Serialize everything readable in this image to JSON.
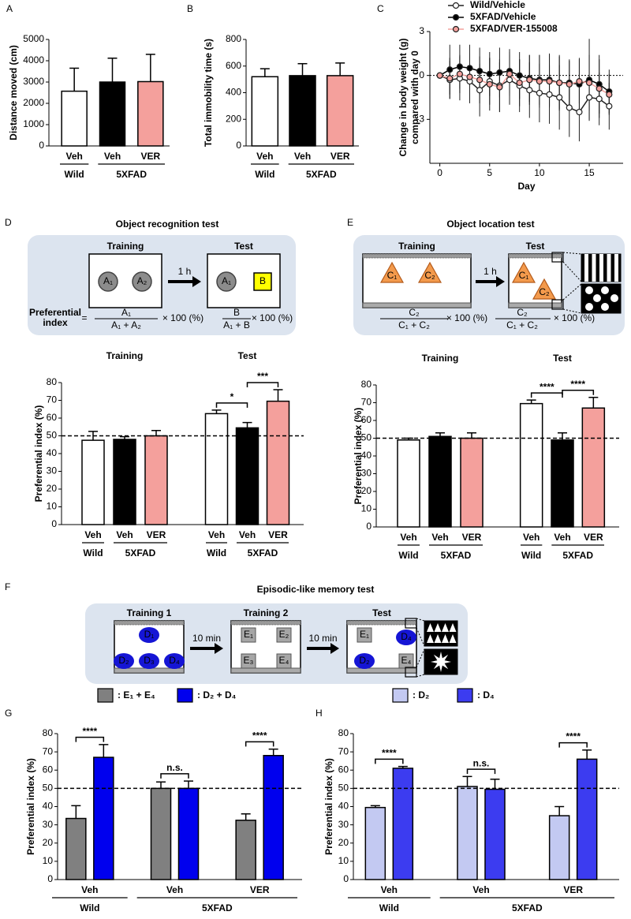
{
  "panel_labels": [
    "A",
    "B",
    "C",
    "D",
    "E",
    "F",
    "G",
    "H"
  ],
  "chart_data": [
    {
      "type": "bar",
      "ylabel": "Distance moved (cm)",
      "ylim": [
        0,
        5000
      ],
      "yticks": [
        0,
        1000,
        2000,
        3000,
        4000,
        5000
      ],
      "colors": [
        "#ffffff",
        "#000000",
        "#f4a09c"
      ],
      "categories": [
        "Veh",
        "Veh",
        "VER"
      ],
      "groups": [
        "Wild",
        "5XFAD"
      ],
      "values": [
        2570,
        3000,
        3020
      ],
      "errors": [
        1080,
        1120,
        1280
      ]
    },
    {
      "type": "bar",
      "ylabel": "Total immobility time (s)",
      "ylim": [
        0,
        800
      ],
      "yticks": [
        0,
        200,
        400,
        600,
        800
      ],
      "colors": [
        "#ffffff",
        "#000000",
        "#f4a09c"
      ],
      "categories": [
        "Veh",
        "Veh",
        "VER"
      ],
      "groups": [
        "Wild",
        "5XFAD"
      ],
      "values": [
        520,
        528,
        528
      ],
      "errors": [
        60,
        90,
        95
      ]
    },
    {
      "type": "line",
      "ylabel": [
        "Change in body weight (g)",
        "compared with day 0"
      ],
      "xlabel": "Day",
      "xlim": [
        -1,
        18.4
      ],
      "xticks": [
        0,
        5,
        10,
        15
      ],
      "ylim": [
        -6,
        3
      ],
      "yticks": [
        -3,
        0,
        3
      ],
      "reference_line": 0,
      "x": [
        0,
        1,
        2,
        3,
        4,
        5,
        6,
        7,
        8,
        9,
        10,
        11,
        12,
        13,
        14,
        15,
        16,
        17
      ],
      "series": [
        {
          "name": "Wild/Vehicle",
          "color": "#ffffff",
          "values": [
            0,
            -0.3,
            -0.2,
            -0.4,
            -1.0,
            -0.4,
            -0.7,
            -0.3,
            -0.7,
            -1.0,
            -1.2,
            -1.3,
            -1.5,
            -2.2,
            -2.5,
            -1.5,
            -1.6,
            -2.1
          ],
          "errors": [
            0,
            1.3,
            1.5,
            1.5,
            1.8,
            1.6,
            1.8,
            1.7,
            1.8,
            1.9,
            2.0,
            2.0,
            2.2,
            2.0,
            2.0,
            1.5,
            1.8,
            1.6
          ]
        },
        {
          "name": "5XFAD/Vehicle",
          "color": "#000000",
          "values": [
            0,
            0.4,
            0.6,
            0.5,
            0.3,
            0.1,
            0.2,
            0.3,
            0,
            -0.2,
            -0.3,
            -0.3,
            -0.5,
            -0.5,
            -0.6,
            -0.3,
            -0.6,
            -1.1
          ],
          "errors": [
            0,
            1.7,
            1.5,
            1.6,
            1.6,
            1.5,
            1.7,
            1.5,
            1.6,
            1.6,
            1.7,
            1.8,
            1.9,
            1.6,
            1.8,
            2.8,
            2.0,
            1.5
          ]
        },
        {
          "name": "5XFAD/VER-155008",
          "color": "#f4a09c",
          "values": [
            0,
            -0.2,
            0.1,
            -0.1,
            -0.3,
            -0.6,
            -0.8,
            0.1,
            -0.5,
            -0.3,
            -0.4,
            -0.4,
            -0.5,
            -0.6,
            -0.4,
            -0.5,
            -0.9,
            -1.3
          ],
          "errors": [
            0,
            1.4,
            1.3,
            1.6,
            1.6,
            1.8,
            1.7,
            1.5,
            1.6,
            1.7,
            1.8,
            1.8,
            1.8,
            1.6,
            1.5,
            1.9,
            2.0,
            1.4
          ]
        }
      ]
    },
    {
      "type": "bar",
      "ylabel": "Preferential index (%)",
      "ylim": [
        0,
        80
      ],
      "yticks": [
        0,
        10,
        20,
        30,
        40,
        50,
        60,
        70,
        80
      ],
      "reference_line": 50,
      "colors": [
        "#ffffff",
        "#000000",
        "#f4a09c"
      ],
      "sections": [
        {
          "title": "Training",
          "categories": [
            "Veh",
            "Veh",
            "VER"
          ],
          "groups": [
            "Wild",
            "5XFAD"
          ],
          "values": [
            47.5,
            48,
            50
          ],
          "errors": [
            5,
            1.5,
            3
          ]
        },
        {
          "title": "Test",
          "categories": [
            "Veh",
            "Veh",
            "VER"
          ],
          "groups": [
            "Wild",
            "5XFAD"
          ],
          "values": [
            62.5,
            54.5,
            69.5
          ],
          "errors": [
            2,
            3,
            6.5
          ],
          "significance": [
            "*",
            "***"
          ]
        }
      ]
    },
    {
      "type": "bar",
      "ylabel": "Preferential index (%)",
      "ylim": [
        0,
        80
      ],
      "yticks": [
        0,
        10,
        20,
        30,
        40,
        50,
        60,
        70,
        80
      ],
      "reference_line": 50,
      "colors": [
        "#ffffff",
        "#000000",
        "#f4a09c"
      ],
      "sections": [
        {
          "title": "Training",
          "categories": [
            "Veh",
            "Veh",
            "VER"
          ],
          "groups": [
            "Wild",
            "5XFAD"
          ],
          "values": [
            49,
            51,
            50
          ],
          "errors": [
            1,
            2,
            3
          ]
        },
        {
          "title": "Test",
          "categories": [
            "Veh",
            "Veh",
            "VER"
          ],
          "groups": [
            "Wild",
            "5XFAD"
          ],
          "values": [
            69.5,
            49,
            67
          ],
          "errors": [
            2,
            4,
            6
          ],
          "significance": [
            "****",
            "****"
          ]
        }
      ]
    },
    {
      "type": "bar",
      "ylabel": "Preferential index (%)",
      "ylim": [
        0,
        80
      ],
      "yticks": [
        0,
        10,
        20,
        30,
        40,
        50,
        60,
        70,
        80
      ],
      "reference_line": 50,
      "categories": [
        "Veh",
        "Veh",
        "VER"
      ],
      "groups": [
        "Wild",
        "5XFAD"
      ],
      "series": [
        {
          "name": ": E₁ + E₄",
          "color": "#808080",
          "values": [
            33.5,
            50,
            32.5
          ],
          "errors": [
            7,
            3.5,
            3.5
          ]
        },
        {
          "name": ": D₂ + D₄",
          "color": "#0000ee",
          "values": [
            67,
            50,
            68
          ],
          "errors": [
            7,
            4,
            3.5
          ]
        }
      ],
      "significance": [
        "****",
        "n.s.",
        "****"
      ]
    },
    {
      "type": "bar",
      "ylabel": "Preferential index (%)",
      "ylim": [
        0,
        80
      ],
      "yticks": [
        0,
        10,
        20,
        30,
        40,
        50,
        60,
        70,
        80
      ],
      "reference_line": 50,
      "categories": [
        "Veh",
        "Veh",
        "VER"
      ],
      "groups": [
        "Wild",
        "5XFAD"
      ],
      "series": [
        {
          "name": ": D₂",
          "color": "#c3c9f2",
          "values": [
            39.5,
            51,
            35
          ],
          "errors": [
            1,
            5.5,
            5
          ]
        },
        {
          "name": ": D₄",
          "color": "#3c3cf0",
          "values": [
            61,
            49.5,
            66
          ],
          "errors": [
            1,
            5.5,
            5
          ]
        }
      ],
      "significance": [
        "****",
        "n.s.",
        "****"
      ]
    }
  ],
  "diagrams": [
    {
      "title": "Object recognition test",
      "stages": [
        {
          "title": "Training",
          "objects": [
            "A₁",
            "A₂"
          ]
        },
        {
          "title": "Test",
          "objects": [
            "A₁",
            "B"
          ]
        }
      ],
      "intervals": [
        "1 h"
      ],
      "index_label": [
        "Preferential",
        "index"
      ],
      "equals": "=",
      "formulas": [
        {
          "numerator": "A₁",
          "denominator": "A₁ + A₂",
          "factor": "× 100 (%)"
        },
        {
          "numerator": "B",
          "denominator": "A₁ + B",
          "factor": "× 100 (%)"
        }
      ]
    },
    {
      "title": "Object location test",
      "stages": [
        {
          "title": "Training",
          "objects": [
            "C₁",
            "C₂"
          ]
        },
        {
          "title": "Test",
          "objects": [
            "C₁",
            "C₂"
          ]
        }
      ],
      "intervals": [
        "1 h"
      ],
      "formulas": [
        {
          "numerator": "C₂",
          "denominator": "C₁ + C₂",
          "factor": "× 100 (%)"
        },
        {
          "numerator": "C₂",
          "denominator": "C₁ + C₂",
          "factor": "× 100 (%)"
        }
      ]
    },
    {
      "title": "Episodic-like memory test",
      "stages": [
        {
          "title": "Training 1",
          "objects": [
            "D₁",
            "D₂",
            "D₃",
            "D₄"
          ]
        },
        {
          "title": "Training 2",
          "objects": [
            "E₁",
            "E₂",
            "E₃",
            "E₄"
          ]
        },
        {
          "title": "Test",
          "objects": [
            "E₁",
            "D₄",
            "D₂",
            "E₄"
          ]
        }
      ],
      "intervals": [
        "10 min",
        "10 min"
      ]
    }
  ]
}
